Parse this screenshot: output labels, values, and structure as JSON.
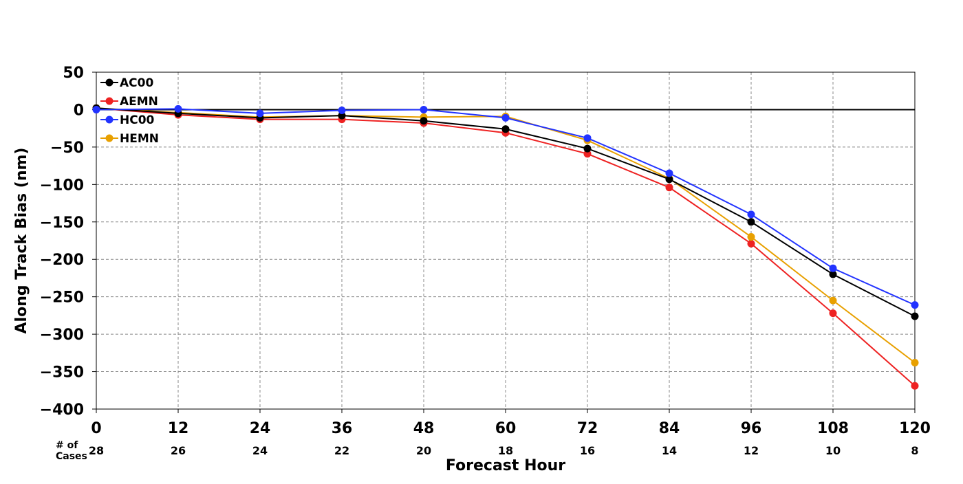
{
  "chart_data": {
    "type": "line",
    "title": "",
    "xlabel": "Forecast Hour",
    "ylabel": "Along Track Bias (nm)",
    "xlim": [
      0,
      120
    ],
    "ylim": [
      -400,
      50
    ],
    "x": [
      0,
      12,
      24,
      36,
      48,
      60,
      72,
      84,
      96,
      108,
      120
    ],
    "xticks": [
      "0",
      "12",
      "24",
      "36",
      "48",
      "60",
      "72",
      "84",
      "96",
      "108",
      "120"
    ],
    "yticks": [
      "50",
      "0",
      "−50",
      "−100",
      "−150",
      "−200",
      "−250",
      "−300",
      "−350",
      "−400"
    ],
    "ytick_values": [
      50,
      0,
      -50,
      -100,
      -150,
      -200,
      -250,
      -300,
      -350,
      -400
    ],
    "grid": true,
    "legend_position": "top-left",
    "cases_label": "# of\nCases",
    "cases": [
      "28",
      "26",
      "24",
      "22",
      "20",
      "18",
      "16",
      "14",
      "12",
      "10",
      "8"
    ],
    "series": [
      {
        "name": "AC00",
        "color": "#000000",
        "values": [
          2,
          -5,
          -11,
          -8,
          -15,
          -26,
          -52,
          -93,
          -150,
          -220,
          -276
        ]
      },
      {
        "name": "AEMN",
        "color": "#ee2222",
        "values": [
          2,
          -7,
          -13,
          -13,
          -18,
          -31,
          -59,
          -104,
          -179,
          -272,
          -369
        ]
      },
      {
        "name": "HC00",
        "color": "#2233ff",
        "values": [
          0,
          1,
          -5,
          -1,
          0,
          -11,
          -38,
          -85,
          -140,
          -212,
          -261
        ]
      },
      {
        "name": "HEMN",
        "color": "#e8a000",
        "values": [
          2,
          -4,
          -10,
          -8,
          -10,
          -9,
          -41,
          -92,
          -170,
          -255,
          -338
        ]
      }
    ]
  }
}
